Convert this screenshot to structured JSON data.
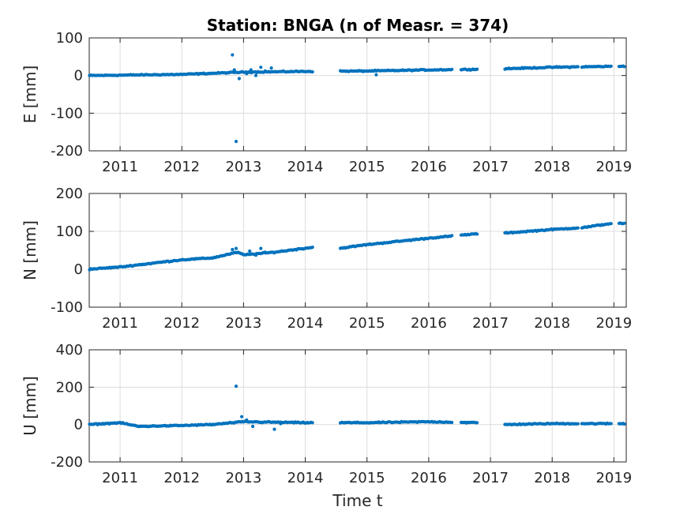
{
  "chart_data": {
    "type": "scatter",
    "title": "Station: BNGA (n of Measr. = 374)",
    "xlabel": "Time t",
    "marker_color": "#0072BD",
    "grid": true,
    "xlim": [
      2010.5,
      2019.2
    ],
    "xticks": [
      2011,
      2012,
      2013,
      2014,
      2015,
      2016,
      2017,
      2018,
      2019
    ],
    "data_gaps": [
      [
        2014.12,
        2014.55
      ],
      [
        2016.38,
        2016.52
      ],
      [
        2016.8,
        2017.22
      ],
      [
        2018.42,
        2018.47
      ],
      [
        2018.97,
        2019.08
      ]
    ],
    "panels": [
      {
        "ylabel": "E [mm]",
        "ylim": [
          -200,
          100
        ],
        "yticks": [
          -200,
          -100,
          0,
          100
        ],
        "trend": [
          [
            2010.5,
            0
          ],
          [
            2011.0,
            1
          ],
          [
            2012.0,
            3
          ],
          [
            2013.0,
            9
          ],
          [
            2014.0,
            11
          ],
          [
            2015.0,
            12
          ],
          [
            2016.0,
            15
          ],
          [
            2017.0,
            17
          ],
          [
            2018.0,
            22
          ],
          [
            2019.2,
            25
          ]
        ],
        "outliers": [
          [
            2012.82,
            55
          ],
          [
            2012.88,
            -175
          ],
          [
            2012.93,
            -8
          ],
          [
            2012.85,
            15
          ],
          [
            2012.98,
            10
          ],
          [
            2013.05,
            5
          ],
          [
            2013.12,
            15
          ],
          [
            2013.2,
            0
          ],
          [
            2013.28,
            22
          ],
          [
            2013.35,
            12
          ],
          [
            2013.45,
            20
          ],
          [
            2015.15,
            2
          ]
        ]
      },
      {
        "ylabel": "N [mm]",
        "ylim": [
          -100,
          200
        ],
        "yticks": [
          -100,
          0,
          100,
          200
        ],
        "trend": [
          [
            2010.5,
            0
          ],
          [
            2011.0,
            6
          ],
          [
            2012.0,
            25
          ],
          [
            2012.5,
            30
          ],
          [
            2012.9,
            45
          ],
          [
            2013.0,
            38
          ],
          [
            2013.5,
            45
          ],
          [
            2014.12,
            58
          ],
          [
            2014.55,
            55
          ],
          [
            2015.0,
            65
          ],
          [
            2016.0,
            82
          ],
          [
            2016.8,
            94
          ],
          [
            2017.2,
            95
          ],
          [
            2018.0,
            105
          ],
          [
            2018.5,
            110
          ],
          [
            2019.0,
            122
          ],
          [
            2019.2,
            120
          ]
        ],
        "outliers": [
          [
            2012.82,
            52
          ],
          [
            2012.88,
            55
          ],
          [
            2012.95,
            42
          ],
          [
            2013.1,
            48
          ],
          [
            2013.2,
            37
          ],
          [
            2013.28,
            55
          ],
          [
            2013.35,
            45
          ]
        ]
      },
      {
        "ylabel": "U [mm]",
        "ylim": [
          -200,
          400
        ],
        "yticks": [
          -200,
          0,
          200,
          400
        ],
        "trend": [
          [
            2010.5,
            0
          ],
          [
            2011.0,
            10
          ],
          [
            2011.3,
            -10
          ],
          [
            2012.0,
            -5
          ],
          [
            2012.5,
            0
          ],
          [
            2013.0,
            15
          ],
          [
            2014.0,
            10
          ],
          [
            2015.0,
            10
          ],
          [
            2016.0,
            15
          ],
          [
            2016.8,
            10
          ],
          [
            2017.22,
            0
          ],
          [
            2018.0,
            5
          ],
          [
            2019.2,
            5
          ]
        ],
        "outliers": [
          [
            2012.88,
            205
          ],
          [
            2012.97,
            42
          ],
          [
            2013.05,
            25
          ],
          [
            2013.15,
            -10
          ],
          [
            2013.3,
            10
          ],
          [
            2013.5,
            -25
          ],
          [
            2013.6,
            5
          ]
        ]
      }
    ]
  }
}
